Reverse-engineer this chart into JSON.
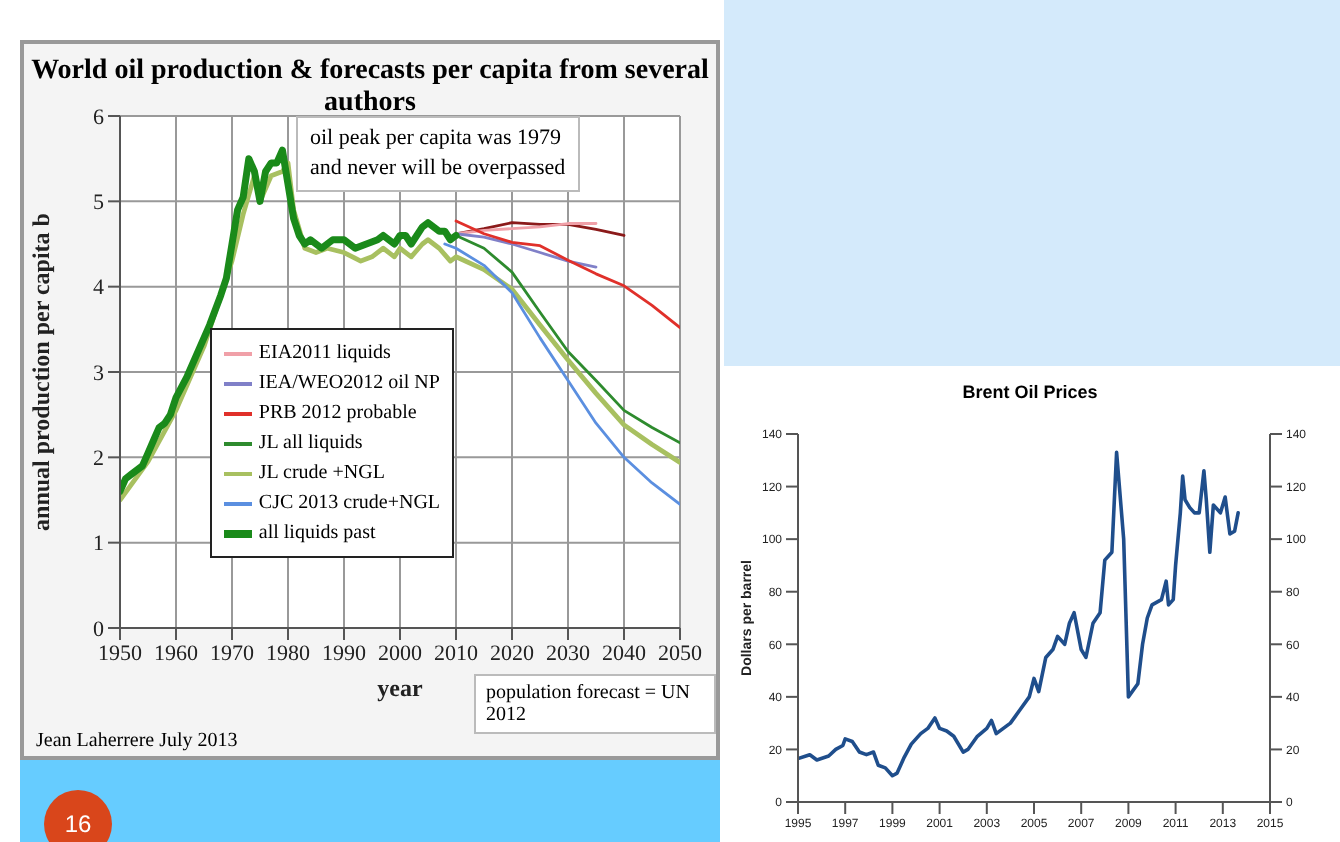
{
  "chart_data": [
    {
      "type": "line",
      "title": "World oil production & forecasts per capita from several authors",
      "xlabel": "year",
      "ylabel": "annual production per capita b",
      "xlim": [
        1950,
        2050
      ],
      "xticks": [
        1950,
        1960,
        1970,
        1980,
        1990,
        2000,
        2010,
        2020,
        2030,
        2040,
        2050
      ],
      "ylim": [
        0,
        6
      ],
      "yticks": [
        0,
        1,
        2,
        3,
        4,
        5,
        6
      ],
      "grid": true,
      "legend": "left",
      "marker": "none",
      "line_style": "solid",
      "annotations": [
        "oil peak per capita was 1979\nand never will be overpassed",
        "population forecast = UN 2012",
        "Jean Laherrere July 2013",
        "16"
      ],
      "series": [
        {
          "color": "#8b1a1a",
          "x": [
            2010,
            2015,
            2020,
            2025,
            2030,
            2035,
            2040
          ],
          "values": [
            4.62,
            4.68,
            4.75,
            4.73,
            4.73,
            4.67,
            4.6
          ]
        },
        {
          "name": "EIA2011 liquids",
          "color": "#f0a0a8",
          "x": [
            2010,
            2015,
            2020,
            2025,
            2030,
            2035
          ],
          "values": [
            4.62,
            4.66,
            4.68,
            4.7,
            4.74,
            4.74
          ]
        },
        {
          "name": "IEA/WEO2012 oil NP",
          "color": "#8080c8",
          "x": [
            2010,
            2015,
            2020,
            2025,
            2030,
            2035
          ],
          "values": [
            4.62,
            4.58,
            4.5,
            4.4,
            4.3,
            4.23
          ]
        },
        {
          "name": "PRB 2012 probable",
          "color": "#e0302a",
          "x": [
            2010,
            2015,
            2020,
            2025,
            2030,
            2035,
            2040,
            2045,
            2050
          ],
          "values": [
            4.77,
            4.62,
            4.52,
            4.48,
            4.31,
            4.15,
            4.01,
            3.78,
            3.52
          ]
        },
        {
          "name": "JL all liquids",
          "color": "#2e8b2e",
          "x": [
            2010,
            2015,
            2020,
            2025,
            2030,
            2035,
            2040,
            2045,
            2050
          ],
          "values": [
            4.6,
            4.45,
            4.17,
            3.7,
            3.24,
            2.9,
            2.55,
            2.35,
            2.17
          ]
        },
        {
          "name": "JL crude +NGL",
          "color": "#a8c060",
          "x": [
            1950,
            1955,
            1960,
            1965,
            1970,
            1972,
            1974,
            1975,
            1977,
            1979,
            1980,
            1981,
            1983,
            1985,
            1987,
            1990,
            1993,
            1995,
            1997,
            1999,
            2000,
            2002,
            2004,
            2005,
            2007,
            2009,
            2010,
            2015,
            2020,
            2025,
            2030,
            2035,
            2040,
            2045,
            2050
          ],
          "values": [
            1.5,
            1.95,
            2.55,
            3.3,
            4.3,
            4.85,
            5.3,
            5.0,
            5.3,
            5.35,
            5.45,
            4.9,
            4.45,
            4.4,
            4.45,
            4.4,
            4.3,
            4.35,
            4.45,
            4.35,
            4.45,
            4.35,
            4.5,
            4.55,
            4.45,
            4.3,
            4.35,
            4.2,
            3.97,
            3.55,
            3.14,
            2.75,
            2.38,
            2.15,
            1.94
          ]
        },
        {
          "name": "CJC 2013 crude+NGL",
          "color": "#5b8fe0",
          "x": [
            2008,
            2010,
            2015,
            2020,
            2025,
            2030,
            2035,
            2040,
            2045,
            2050
          ],
          "values": [
            4.5,
            4.45,
            4.25,
            3.93,
            3.4,
            2.9,
            2.4,
            2.0,
            1.7,
            1.45
          ]
        },
        {
          "name": "all liquids past",
          "color": "#1a8a1a",
          "x": [
            1950,
            1951,
            1952,
            1954,
            1955,
            1956,
            1957,
            1958,
            1959,
            1960,
            1962,
            1964,
            1966,
            1968,
            1969,
            1970,
            1971,
            1972,
            1973,
            1974,
            1975,
            1976,
            1977,
            1978,
            1979,
            1980,
            1981,
            1982,
            1983,
            1984,
            1985,
            1986,
            1987,
            1988,
            1990,
            1992,
            1994,
            1996,
            1997,
            1999,
            2000,
            2001,
            2002,
            2004,
            2005,
            2006,
            2007,
            2008,
            2009,
            2010
          ],
          "values": [
            1.6,
            1.75,
            1.8,
            1.9,
            2.05,
            2.2,
            2.35,
            2.4,
            2.5,
            2.7,
            2.95,
            3.25,
            3.55,
            3.9,
            4.1,
            4.5,
            4.9,
            5.05,
            5.5,
            5.35,
            5.0,
            5.35,
            5.45,
            5.45,
            5.6,
            5.2,
            4.8,
            4.6,
            4.5,
            4.55,
            4.5,
            4.45,
            4.5,
            4.55,
            4.55,
            4.45,
            4.5,
            4.55,
            4.6,
            4.5,
            4.6,
            4.6,
            4.5,
            4.7,
            4.75,
            4.7,
            4.65,
            4.65,
            4.55,
            4.6
          ]
        }
      ]
    },
    {
      "type": "line",
      "title": "Brent Oil Prices",
      "ylabel": "Dollars per barrel",
      "xlim": [
        1995,
        2015
      ],
      "xticks": [
        1995,
        1997,
        1999,
        2001,
        2003,
        2005,
        2007,
        2009,
        2011,
        2013,
        2015
      ],
      "ylim": [
        0,
        140
      ],
      "yticks": [
        0,
        20,
        40,
        60,
        80,
        100,
        120,
        140
      ],
      "y2lim": [
        0,
        140
      ],
      "y2ticks": [
        0,
        20,
        40,
        60,
        80,
        100,
        120,
        140
      ],
      "marker": "none",
      "line_style": "solid",
      "series": [
        {
          "color": "#1f4e8c",
          "x": [
            1995.0,
            1995.5,
            1995.8,
            1996.3,
            1996.6,
            1996.9,
            1997.0,
            1997.3,
            1997.6,
            1997.9,
            1998.2,
            1998.4,
            1998.7,
            1999.0,
            1999.2,
            1999.5,
            1999.8,
            2000.2,
            2000.5,
            2000.8,
            2001.0,
            2001.3,
            2001.6,
            2002.0,
            2002.2,
            2002.6,
            2003.0,
            2003.2,
            2003.4,
            2003.7,
            2004.0,
            2004.4,
            2004.8,
            2005.0,
            2005.2,
            2005.5,
            2005.8,
            2006.0,
            2006.3,
            2006.5,
            2006.7,
            2007.0,
            2007.2,
            2007.5,
            2007.8,
            2008.0,
            2008.3,
            2008.5,
            2008.8,
            2009.0,
            2009.4,
            2009.6,
            2009.8,
            2010.0,
            2010.4,
            2010.6,
            2010.7,
            2010.9,
            2011.0,
            2011.2,
            2011.3,
            2011.4,
            2011.6,
            2011.8,
            2012.0,
            2012.2,
            2012.3,
            2012.45,
            2012.6,
            2012.9,
            2013.1,
            2013.3,
            2013.5,
            2013.65
          ],
          "values": [
            16.5,
            18,
            16,
            17.5,
            20,
            21.5,
            24,
            23,
            19,
            18,
            19,
            14,
            13,
            10,
            11,
            17,
            22,
            26,
            28,
            32,
            28,
            27,
            25,
            19,
            20,
            25,
            28,
            31,
            26,
            28,
            30,
            35,
            40,
            47,
            42,
            55,
            58,
            63,
            60,
            68,
            72,
            58,
            55,
            68,
            72,
            92,
            95,
            133,
            100,
            40,
            45,
            60,
            70,
            75,
            77,
            84,
            75,
            77,
            90,
            110,
            124,
            115,
            112,
            110,
            110,
            126,
            115,
            95,
            113,
            110,
            116,
            102,
            103,
            110
          ]
        }
      ]
    }
  ]
}
